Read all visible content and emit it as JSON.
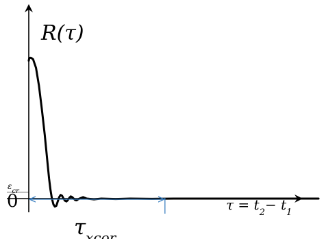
{
  "chart_data": {
    "type": "line",
    "ylabel": "R(τ)",
    "xlabel": "τ = t₂− t₁",
    "origin_label": "0",
    "threshold_label": "εcr",
    "interval_label": "τxcor",
    "curve": {
      "x": [
        0,
        0.6,
        1.5,
        3,
        6,
        10,
        14,
        18,
        22,
        24,
        26,
        28,
        30,
        32,
        34,
        36,
        38,
        40,
        42,
        44,
        46,
        48,
        50,
        52,
        54,
        56,
        58,
        60,
        62,
        64,
        66,
        68,
        70,
        75,
        80,
        90,
        100,
        120,
        140,
        170,
        200,
        240,
        280,
        330,
        380,
        400
      ],
      "y": [
        0.95,
        0.965,
        0.97,
        0.97,
        0.96,
        0.9,
        0.78,
        0.62,
        0.44,
        0.34,
        0.24,
        0.14,
        0.06,
        0.0,
        -0.04,
        -0.055,
        -0.05,
        -0.02,
        0.01,
        0.025,
        0.02,
        0.0,
        -0.015,
        -0.02,
        -0.01,
        0.005,
        0.015,
        0.01,
        0.0,
        -0.01,
        -0.012,
        -0.005,
        0.0,
        0.01,
        0.0,
        -0.005,
        0.0,
        -0.003,
        0.0,
        -0.002,
        0.0,
        0.0,
        0.0,
        0.0,
        0.0,
        0.0
      ]
    },
    "threshold": 0.045,
    "interval_end": 188,
    "xlim": [
      0,
      400
    ],
    "ylim": [
      -0.1,
      1.25
    ]
  }
}
